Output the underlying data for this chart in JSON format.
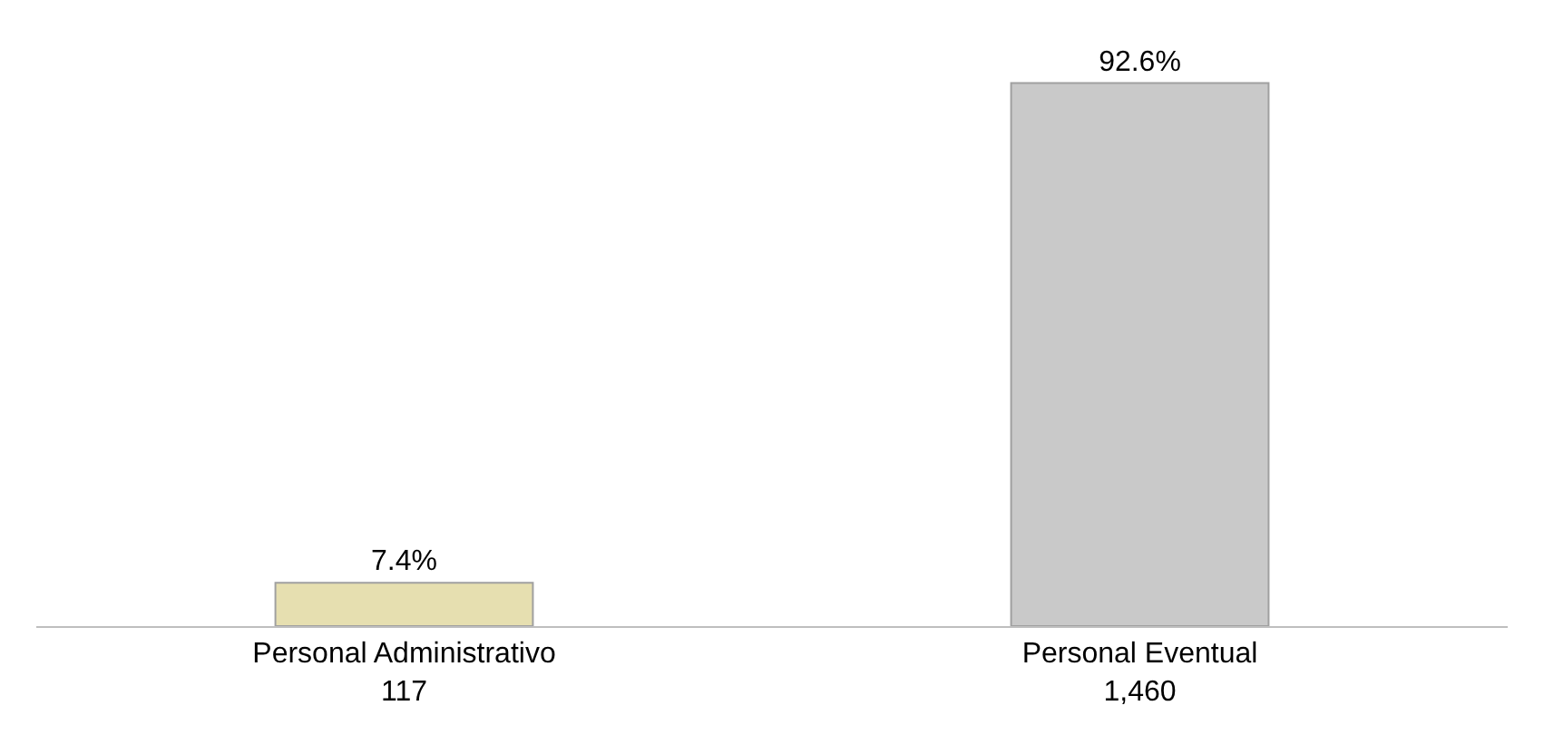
{
  "chart_data": {
    "type": "bar",
    "categories": [
      "Personal Administrativo\n117",
      "Personal Eventual\n1,460"
    ],
    "values": [
      7.4,
      92.6
    ],
    "value_labels": [
      "7.4%",
      "92.6%"
    ],
    "colors": [
      "#e6dfb0",
      "#c9c9c9"
    ],
    "legend": false
  }
}
